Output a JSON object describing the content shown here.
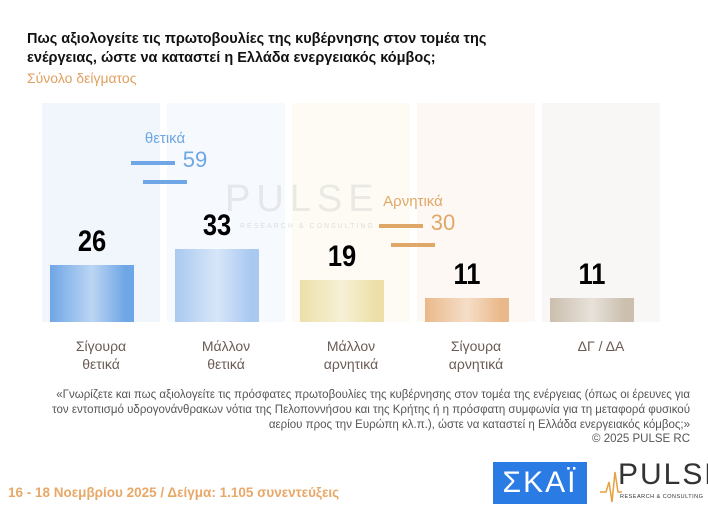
{
  "header": {
    "title": "Πως αξιολογείτε τις πρωτοβουλίες της κυβέρνησης στον τομέα της ενέργειας, ώστε να καταστεί η Ελλάδα ενεργειακός κόμβος;",
    "subtitle": "Σύνολο δείγματος"
  },
  "chart_data": {
    "type": "bar",
    "categories": [
      "Σίγουρα θετικά",
      "Μάλλον θετικά",
      "Μάλλον αρνητικά",
      "Σίγουρα αρνητικά",
      "ΔΓ / ΔΑ"
    ],
    "values": [
      26,
      33,
      19,
      11,
      11
    ],
    "value_labels": [
      "26",
      "33",
      "19",
      "11",
      "11"
    ],
    "colors": [
      "#6fa6e6",
      "#a9c9f0",
      "#ece0a8",
      "#eab98a",
      "#cbbfae"
    ],
    "groups": [
      {
        "name": "θετικά",
        "total": "59",
        "color": "#6fa6e6"
      },
      {
        "name": "Αρνητικά",
        "total": "30",
        "color": "#e0a868"
      }
    ]
  },
  "watermark": {
    "brand": "PULSE",
    "tagline": "RESEARCH & CONSULTING"
  },
  "note": "«Γνωρίζετε και πως αξιολογείτε τις πρόσφατες πρωτοβουλίες της κυβέρνησης στον τομέα της ενέργειας (όπως οι έρευνες για τον εντοπισμό υδρογονάνθρακων νότια της Πελοποννήσου και της Κρήτης ή η πρόσφατη συμφωνία για τη μεταφορά φυσικού αερίου προς την Ευρώπη κλ.π.), ώστε να καταστεί η Ελλάδα ενεργειακός κόμβος;»",
  "copyright": "©  2025  PULSE RC",
  "footer": "16 - 18 Νοεμβρίου 2025  /  Δείγμα:  1.105 συνεντεύξεις",
  "logos": {
    "skai": "ΣΚΑΪ",
    "pulse": "PULSE",
    "pulse_tagline": "RESEARCH & CONSULTING"
  }
}
